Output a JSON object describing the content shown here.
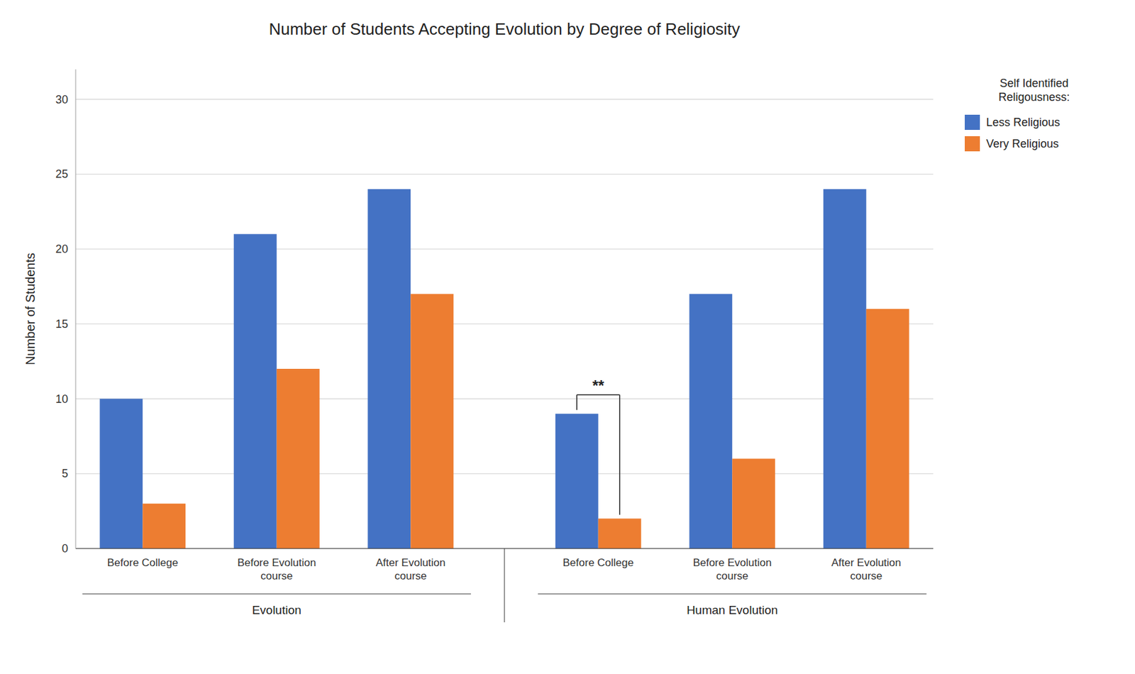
{
  "chart_data": {
    "type": "bar",
    "title": "Number of Students Accepting Evolution by Degree of Religiosity",
    "ylabel": "Number of Students",
    "groups": [
      "Evolution",
      "Human Evolution"
    ],
    "categories": [
      "Before College",
      "Before Evolution\ncourse",
      "After Evolution\ncourse",
      "Before College",
      "Before Evolution\ncourse",
      "After Evolution\ncourse"
    ],
    "series": [
      {
        "name": "Less Religious",
        "color": "#4472C4",
        "values": [
          10,
          21,
          24,
          9,
          17,
          24
        ]
      },
      {
        "name": "Very Religious",
        "color": "#ED7D31",
        "values": [
          3,
          12,
          17,
          2,
          6,
          16
        ]
      }
    ],
    "legend_title": "Self Identified\nReligousness:",
    "annotations": [
      {
        "text": "**",
        "group": "Human Evolution",
        "category": "Before College"
      }
    ],
    "ylim": [
      0,
      32
    ],
    "yticks": [
      0,
      5,
      10,
      15,
      20,
      25,
      30
    ],
    "grid": true,
    "legend": "upper right"
  }
}
